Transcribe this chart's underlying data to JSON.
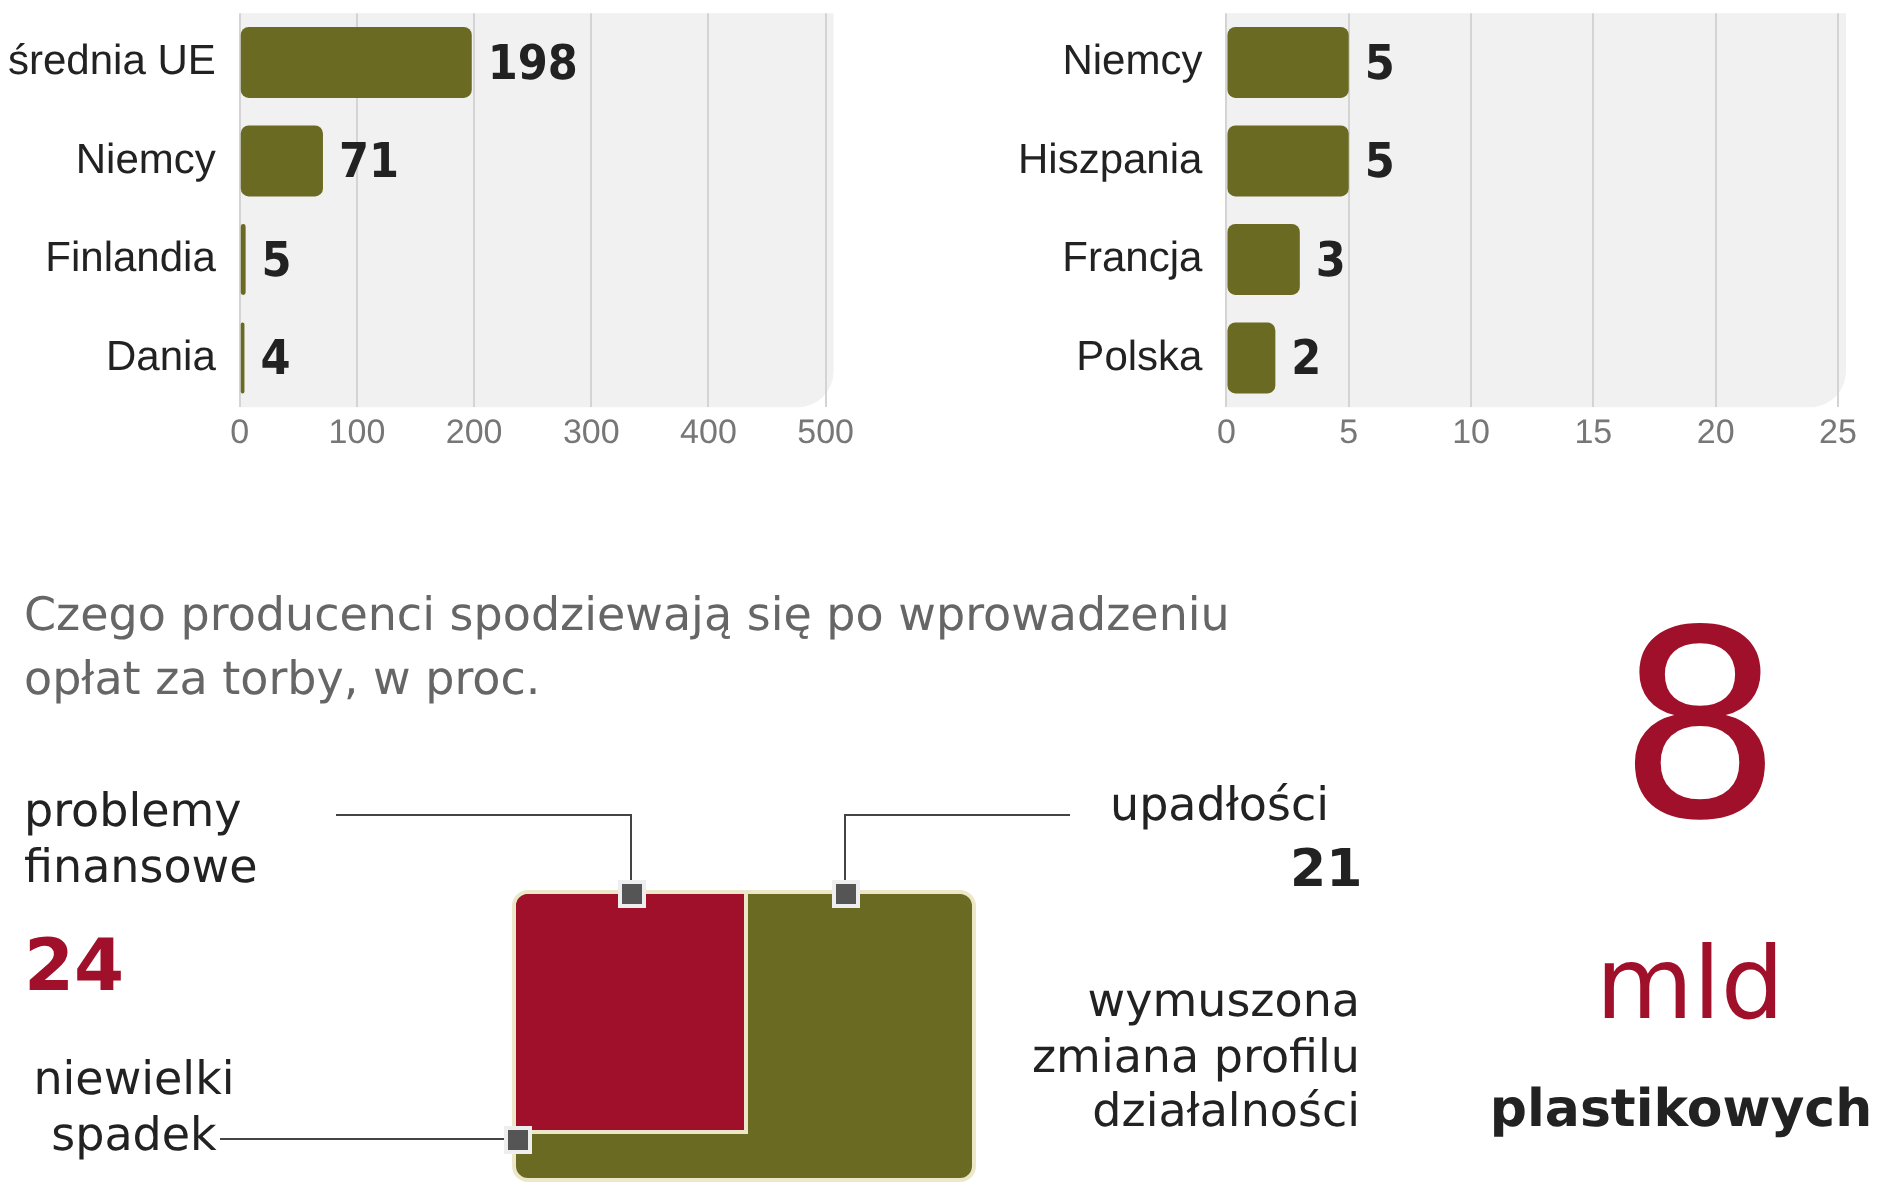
{
  "chart_data": [
    {
      "type": "bar",
      "orientation": "horizontal",
      "categories": [
        "średnia UE",
        "Niemcy",
        "Finlandia",
        "Dania"
      ],
      "values": [
        198,
        71,
        5,
        4
      ],
      "color": "#6b6a22",
      "xlim": [
        0,
        500
      ],
      "xticks": [
        0,
        100,
        200,
        300,
        400,
        500
      ],
      "grid": "x",
      "data_labels": true
    },
    {
      "type": "bar",
      "orientation": "horizontal",
      "categories": [
        "Niemcy",
        "Hiszpania",
        "Francja",
        "Polska"
      ],
      "values": [
        5,
        5,
        3,
        2
      ],
      "color": "#6b6a22",
      "xlim": [
        0,
        25
      ],
      "xticks": [
        0,
        5,
        10,
        15,
        20,
        25
      ],
      "grid": "x",
      "data_labels": true
    },
    {
      "type": "other",
      "title": "Czego producenci spodziewają się po wprowadzeniu opłat za torby, w proc.",
      "annotations": [
        "problemy finansowe",
        "24",
        "upadłości",
        "21",
        "wymuszona zmiana profilu działalności",
        "niewielki spadek"
      ]
    },
    {
      "type": "other",
      "annotations": [
        "8",
        "mld",
        "plastikowych"
      ]
    }
  ]
}
